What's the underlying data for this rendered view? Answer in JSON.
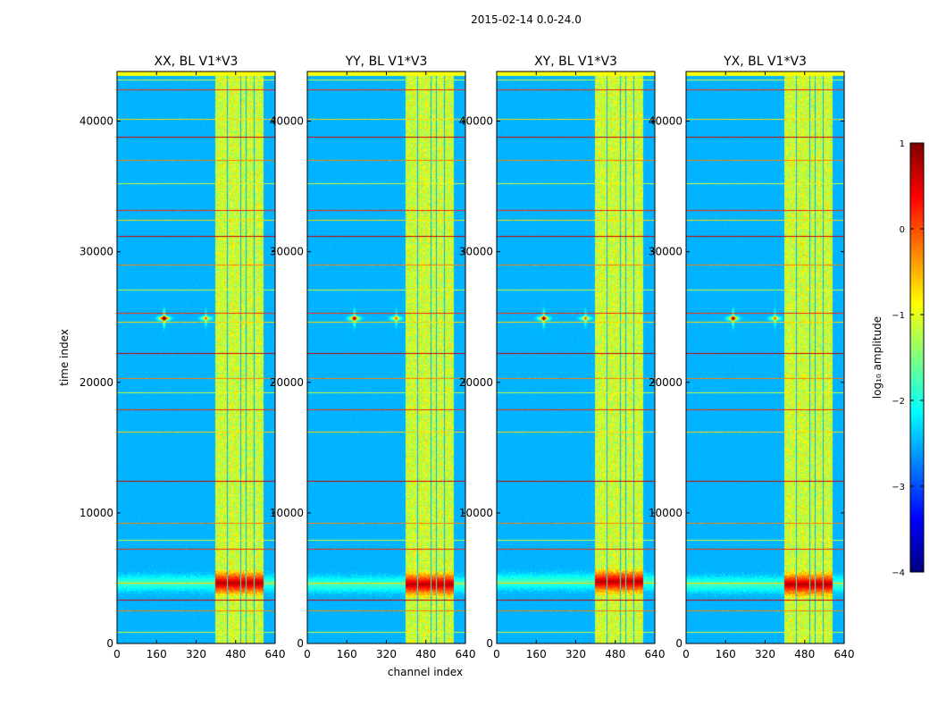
{
  "chart_data": {
    "type": "heatmap",
    "title": "2015-02-14 0.0-24.0",
    "xlabel": "channel index",
    "ylabel": "time index",
    "xlim": [
      0,
      640
    ],
    "ylim": [
      0,
      43800
    ],
    "xticks": [
      0,
      160,
      320,
      480,
      640
    ],
    "yticks": [
      0,
      10000,
      20000,
      30000,
      40000
    ],
    "panels": [
      {
        "title": "XX, BL V1*V3",
        "band_low_y": 4600,
        "sources": [
          [
            190,
            24900,
            1.0
          ],
          [
            360,
            24900,
            0.5
          ]
        ]
      },
      {
        "title": "YY, BL V1*V3",
        "band_low_y": 4500,
        "sources": [
          [
            190,
            24900,
            0.8
          ],
          [
            360,
            24900,
            0.5
          ]
        ]
      },
      {
        "title": "XY, BL V1*V3",
        "band_low_y": 4700,
        "sources": [
          [
            190,
            24900,
            0.8
          ],
          [
            360,
            24900,
            0.5
          ]
        ]
      },
      {
        "title": "YX, BL V1*V3",
        "band_low_y": 4500,
        "sources": [
          [
            190,
            24900,
            0.8
          ],
          [
            360,
            24900,
            0.5
          ]
        ]
      }
    ],
    "rfi_channel_ranges": [
      [
        400,
        445
      ],
      [
        450,
        500
      ],
      [
        505,
        520
      ],
      [
        525,
        555
      ],
      [
        560,
        595
      ]
    ],
    "rfi_time_lines": [
      800,
      2500,
      3300,
      4600,
      7200,
      7900,
      9200,
      12400,
      16200,
      17900,
      19200,
      20300,
      22200,
      24600,
      25300,
      27100,
      29000,
      31200,
      32400,
      33200,
      35200,
      37000,
      38800,
      40200,
      42400,
      43200
    ],
    "colorbar": {
      "label": "log₁₀ amplitude",
      "min": -4,
      "max": 1,
      "ticks": [
        "1",
        "0",
        "−1",
        "−2",
        "−3",
        "−4"
      ],
      "colormap": "jet"
    }
  }
}
